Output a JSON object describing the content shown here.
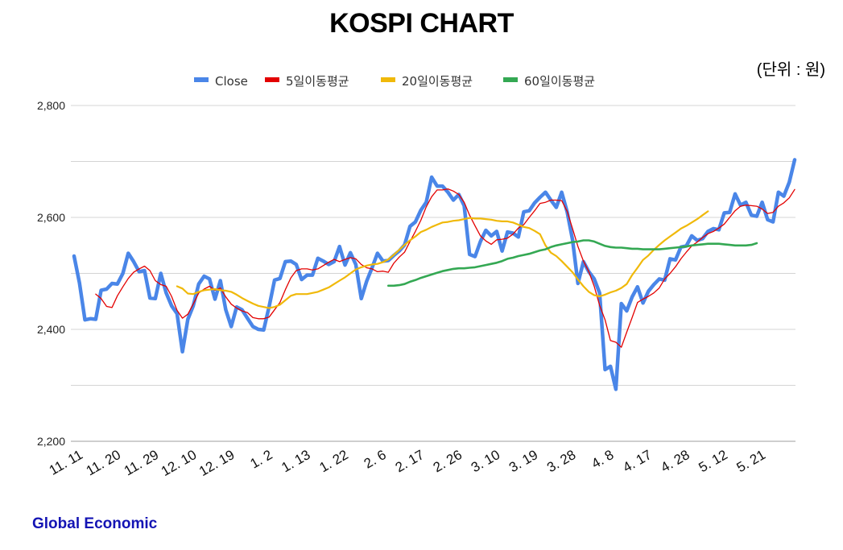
{
  "chart_data": {
    "type": "line",
    "title": "KOSPI CHART",
    "unit_note": "(단위 : 원)",
    "xlabel": "",
    "ylabel": "",
    "ylim": [
      2200,
      2800
    ],
    "yticks": [
      "2,800",
      "2,600",
      "2,400",
      "2,200"
    ],
    "ytick_values": [
      2800,
      2600,
      2400,
      2200
    ],
    "x_tick_labels": [
      "11. 11",
      "11. 20",
      "11. 29",
      "12. 10",
      "12. 19",
      "1. 2",
      "1. 13",
      "1. 22",
      "2. 6",
      "2. 17",
      "2. 26",
      "3. 10",
      "3. 19",
      "3. 28",
      "4. 8",
      "4. 17",
      "4. 28",
      "5. 12",
      "5. 21"
    ],
    "grid": true,
    "legend_position": "top",
    "series": [
      {
        "name": "Close",
        "color": "#4a86e8",
        "values": [
          2531,
          2483,
          2417,
          2419,
          2418,
          2470,
          2472,
          2482,
          2481,
          2500,
          2536,
          2521,
          2503,
          2505,
          2456,
          2455,
          2500,
          2465,
          2442,
          2428,
          2360,
          2418,
          2442,
          2481,
          2495,
          2490,
          2454,
          2487,
          2435,
          2405,
          2440,
          2435,
          2420,
          2405,
          2400,
          2399,
          2441,
          2488,
          2491,
          2521,
          2522,
          2516,
          2489,
          2497,
          2497,
          2527,
          2522,
          2516,
          2521,
          2548,
          2515,
          2537,
          2516,
          2455,
          2486,
          2510,
          2536,
          2522,
          2523,
          2532,
          2540,
          2551,
          2584,
          2592,
          2613,
          2627,
          2672,
          2656,
          2656,
          2645,
          2631,
          2641,
          2621,
          2534,
          2530,
          2557,
          2577,
          2567,
          2575,
          2540,
          2574,
          2572,
          2565,
          2610,
          2612,
          2626,
          2636,
          2645,
          2631,
          2618,
          2645,
          2610,
          2560,
          2482,
          2521,
          2503,
          2490,
          2465,
          2328,
          2334,
          2293,
          2446,
          2433,
          2458,
          2476,
          2447,
          2468,
          2480,
          2490,
          2488,
          2526,
          2524,
          2547,
          2549,
          2567,
          2559,
          2562,
          2575,
          2580,
          2578,
          2608,
          2609,
          2642,
          2622,
          2627,
          2604,
          2602,
          2627,
          2596,
          2592,
          2645,
          2638,
          2663,
          2703
        ]
      },
      {
        "name": "5일이동평균",
        "color": "#e30000",
        "values": [
          null,
          null,
          null,
          null,
          2463,
          2455,
          2441,
          2439,
          2460,
          2476,
          2491,
          2502,
          2508,
          2513,
          2505,
          2487,
          2480,
          2477,
          2459,
          2434,
          2420,
          2427,
          2445,
          2465,
          2472,
          2477,
          2470,
          2474,
          2458,
          2445,
          2438,
          2433,
          2430,
          2421,
          2419,
          2419,
          2422,
          2435,
          2448,
          2471,
          2492,
          2505,
          2508,
          2508,
          2506,
          2508,
          2514,
          2520,
          2525,
          2521,
          2525,
          2528,
          2526,
          2516,
          2510,
          2508,
          2503,
          2504,
          2502,
          2518,
          2529,
          2538,
          2557,
          2575,
          2595,
          2619,
          2637,
          2649,
          2649,
          2651,
          2647,
          2641,
          2627,
          2604,
          2585,
          2567,
          2558,
          2552,
          2560,
          2561,
          2563,
          2570,
          2581,
          2587,
          2600,
          2612,
          2625,
          2627,
          2631,
          2631,
          2630,
          2611,
          2580,
          2548,
          2522,
          2503,
          2477,
          2443,
          2417,
          2380,
          2377,
          2368,
          2395,
          2421,
          2448,
          2454,
          2459,
          2465,
          2474,
          2490,
          2500,
          2512,
          2526,
          2538,
          2549,
          2556,
          2564,
          2571,
          2575,
          2581,
          2588,
          2600,
          2612,
          2620,
          2622,
          2621,
          2620,
          2615,
          2607,
          2609,
          2620,
          2626,
          2635,
          2650
        ]
      },
      {
        "name": "20일이동평균",
        "color": "#f0b90a",
        "values": [
          null,
          null,
          null,
          null,
          null,
          null,
          null,
          null,
          null,
          null,
          null,
          null,
          null,
          null,
          null,
          null,
          null,
          null,
          null,
          2477,
          2473,
          2464,
          2463,
          2467,
          2470,
          2471,
          2472,
          2470,
          2469,
          2467,
          2462,
          2456,
          2451,
          2446,
          2442,
          2440,
          2438,
          2440,
          2444,
          2452,
          2460,
          2463,
          2463,
          2463,
          2465,
          2467,
          2471,
          2475,
          2481,
          2487,
          2493,
          2500,
          2507,
          2511,
          2514,
          2516,
          2517,
          2520,
          2525,
          2533,
          2542,
          2551,
          2559,
          2566,
          2574,
          2578,
          2583,
          2587,
          2591,
          2592,
          2594,
          2595,
          2597,
          2599,
          2598,
          2598,
          2597,
          2596,
          2594,
          2593,
          2593,
          2591,
          2587,
          2583,
          2581,
          2576,
          2570,
          2550,
          2537,
          2531,
          2522,
          2512,
          2502,
          2489,
          2477,
          2467,
          2461,
          2459,
          2462,
          2466,
          2469,
          2474,
          2481,
          2497,
          2510,
          2524,
          2532,
          2542,
          2551,
          2559,
          2566,
          2573,
          2580,
          2585,
          2591,
          2597,
          2604,
          2611
        ]
      },
      {
        "name": "60일이동평균",
        "color": "#34a853",
        "values": [
          null,
          null,
          null,
          null,
          null,
          null,
          null,
          null,
          null,
          null,
          null,
          null,
          null,
          null,
          null,
          null,
          null,
          null,
          null,
          null,
          null,
          null,
          null,
          null,
          null,
          null,
          null,
          null,
          null,
          null,
          null,
          null,
          null,
          null,
          null,
          null,
          null,
          null,
          null,
          null,
          null,
          null,
          null,
          null,
          null,
          null,
          null,
          null,
          null,
          null,
          null,
          null,
          null,
          null,
          null,
          null,
          null,
          null,
          2478,
          2478,
          2479,
          2481,
          2485,
          2488,
          2492,
          2495,
          2498,
          2501,
          2504,
          2506,
          2508,
          2509,
          2509,
          2510,
          2511,
          2513,
          2515,
          2517,
          2519,
          2522,
          2526,
          2528,
          2531,
          2533,
          2535,
          2538,
          2541,
          2543,
          2547,
          2550,
          2552,
          2554,
          2556,
          2557,
          2559,
          2559,
          2557,
          2553,
          2549,
          2547,
          2546,
          2546,
          2545,
          2544,
          2544,
          2543,
          2543,
          2543,
          2543,
          2544,
          2545,
          2546,
          2547,
          2548,
          2550,
          2551,
          2552,
          2553,
          2553,
          2553,
          2552,
          2551,
          2550,
          2550,
          2550,
          2551,
          2554
        ]
      }
    ]
  },
  "footer": {
    "brand": "Global Economic"
  }
}
